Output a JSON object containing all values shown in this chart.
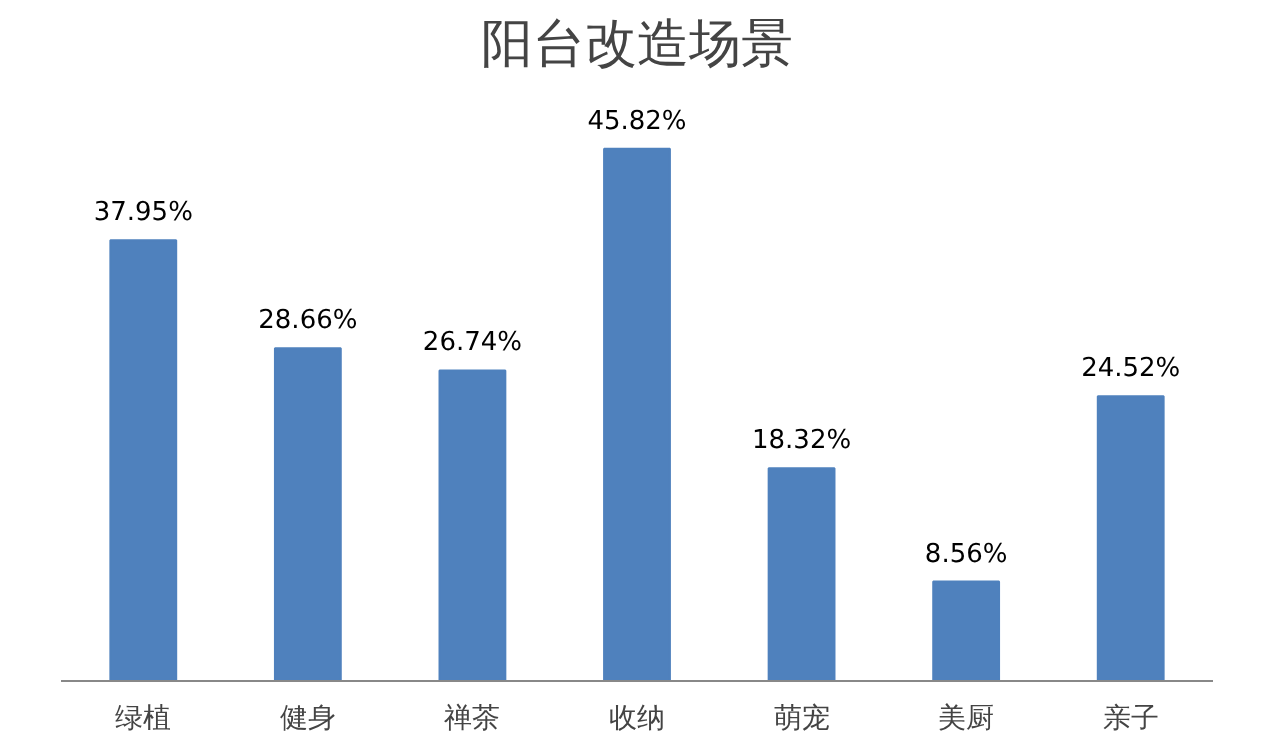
{
  "chart_data": {
    "type": "bar",
    "title": "阳台改造场景",
    "categories": [
      "绿植",
      "健身",
      "禅茶",
      "收纳",
      "萌宠",
      "美厨",
      "亲子"
    ],
    "values": [
      37.95,
      28.66,
      26.74,
      45.82,
      18.32,
      8.56,
      24.52
    ],
    "value_labels": [
      "37.95%",
      "28.66%",
      "26.74%",
      "45.82%",
      "18.32%",
      "8.56%",
      "24.52%"
    ],
    "color": "#4f81bd",
    "grid": false,
    "tick_labels": "x"
  }
}
